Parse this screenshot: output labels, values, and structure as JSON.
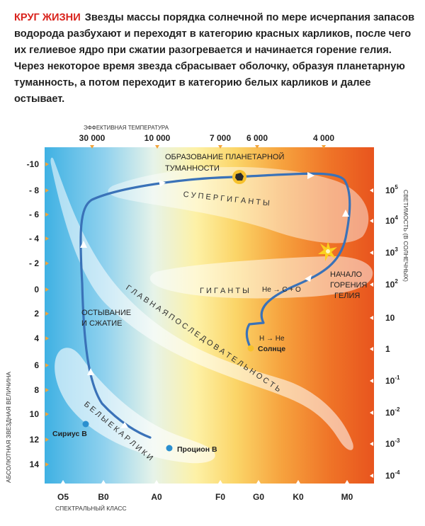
{
  "caption": {
    "heading": "КРУГ ЖИЗНИ",
    "text": "Звезды массы порядка солнечной по мере исчерпания запасов водорода разбухают и переходят в категорию красных карликов, после чего их гелиевое ядро при сжатии разогревается и начинается горение гелия. Через некоторое время звезда сбрасывает оболочку, образуя планетарную туманность, а потом переходит в категорию белых карликов и далее остывает."
  },
  "diagram": {
    "top_axis_title": "ЭФФЕКТИВНАЯ ТЕМПЕРАТУРА",
    "top_ticks": [
      "30 000",
      "10 000",
      "7 000",
      "6 000",
      "4 000"
    ],
    "left_axis_title": "АБСОЛЮТНАЯ ЗВЕЗДНАЯ ВЕЛИЧИНА",
    "left_ticks": [
      "-10",
      "- 8",
      "- 6",
      "- 4",
      "- 2",
      "0",
      "2",
      "4",
      "6",
      "8",
      "10",
      "12",
      "14"
    ],
    "right_axis_title": "СВЕТИМОСТЬ (В СОЛНЕЧНЫХ)",
    "right_ticks": [
      {
        "base": "10",
        "exp": "5"
      },
      {
        "base": "10",
        "exp": "4"
      },
      {
        "base": "10",
        "exp": "3"
      },
      {
        "base": "10",
        "exp": "2"
      },
      {
        "base": "10",
        "exp": ""
      },
      {
        "base": "1",
        "exp": ""
      },
      {
        "base": "10",
        "exp": "-1"
      },
      {
        "base": "10",
        "exp": "-2"
      },
      {
        "base": "10",
        "exp": "-3"
      },
      {
        "base": "10",
        "exp": "-4"
      }
    ],
    "bottom_axis_title": "СПЕКТРАЛЬНЫЙ КЛАСС",
    "bottom_ticks": [
      "O5",
      "B0",
      "A0",
      "F0",
      "G0",
      "K0",
      "M0"
    ],
    "labels": {
      "nebula": [
        "ОБРАЗОВАНИЕ ПЛАНЕТАРНОЙ",
        "ТУМАННОСТИ"
      ],
      "supergiants": "С У П Е Р Г И Г А Н Т Ы",
      "giants": "Г И Г А Н Т Ы",
      "main_sequence": "Г Л А В Н А Я   П О С Л Е Д О В А Т Е Л Ь Н О С Т Ь",
      "white_dwarfs": "Б Е Л Ы Е   К А Р Л И К И",
      "cooling": [
        "ОСТЫВАНИЕ",
        "И СЖАТИЕ"
      ],
      "helium_start": [
        "НАЧАЛО",
        "ГОРЕНИЯ",
        "ГЕЛИЯ"
      ],
      "h_he": "H → He",
      "he_co": "He → C + O",
      "sun": "Солнце",
      "sirius": "Сириус В",
      "procyon": "Процион В"
    },
    "colors": {
      "cool_blue": "#3fb1e3",
      "hot_orange": "#e8541e",
      "track": "#3a72b8",
      "star_yellow": "#f6c12c",
      "dwarf_blue": "#2a8fcf"
    }
  }
}
